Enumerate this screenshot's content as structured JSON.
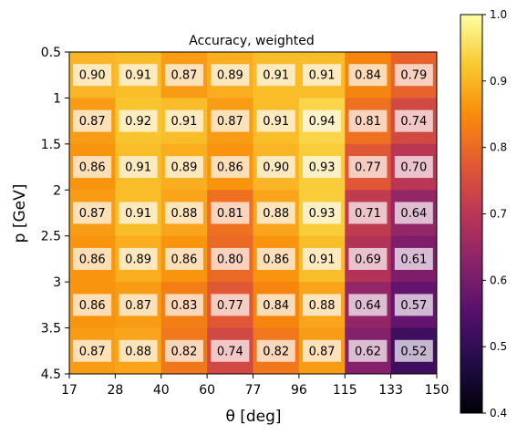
{
  "chart_data": {
    "type": "heatmap",
    "title": "Accuracy, weighted",
    "xlabel": "θ [deg]",
    "ylabel": "p [GeV]",
    "x_edges": [
      "17",
      "28",
      "40",
      "60",
      "77",
      "96",
      "115",
      "133",
      "150"
    ],
    "y_edges": [
      "0.5",
      "1",
      "1.5",
      "2",
      "2.5",
      "3",
      "3.5",
      "4.5"
    ],
    "values": [
      [
        0.9,
        0.91,
        0.87,
        0.89,
        0.91,
        0.91,
        0.84,
        0.79
      ],
      [
        0.87,
        0.92,
        0.91,
        0.87,
        0.91,
        0.94,
        0.81,
        0.74
      ],
      [
        0.86,
        0.91,
        0.89,
        0.86,
        0.9,
        0.93,
        0.77,
        0.7
      ],
      [
        0.87,
        0.91,
        0.88,
        0.81,
        0.88,
        0.93,
        0.71,
        0.64
      ],
      [
        0.86,
        0.89,
        0.86,
        0.8,
        0.86,
        0.91,
        0.69,
        0.61
      ],
      [
        0.86,
        0.87,
        0.83,
        0.77,
        0.84,
        0.88,
        0.64,
        0.57
      ],
      [
        0.87,
        0.88,
        0.82,
        0.74,
        0.82,
        0.87,
        0.62,
        0.52
      ]
    ],
    "colormap": "inferno",
    "vmin": 0.4,
    "vmax": 1.0,
    "colorbar_ticks": [
      "0.4",
      "0.5",
      "0.6",
      "0.7",
      "0.8",
      "0.9",
      "1.0"
    ]
  }
}
